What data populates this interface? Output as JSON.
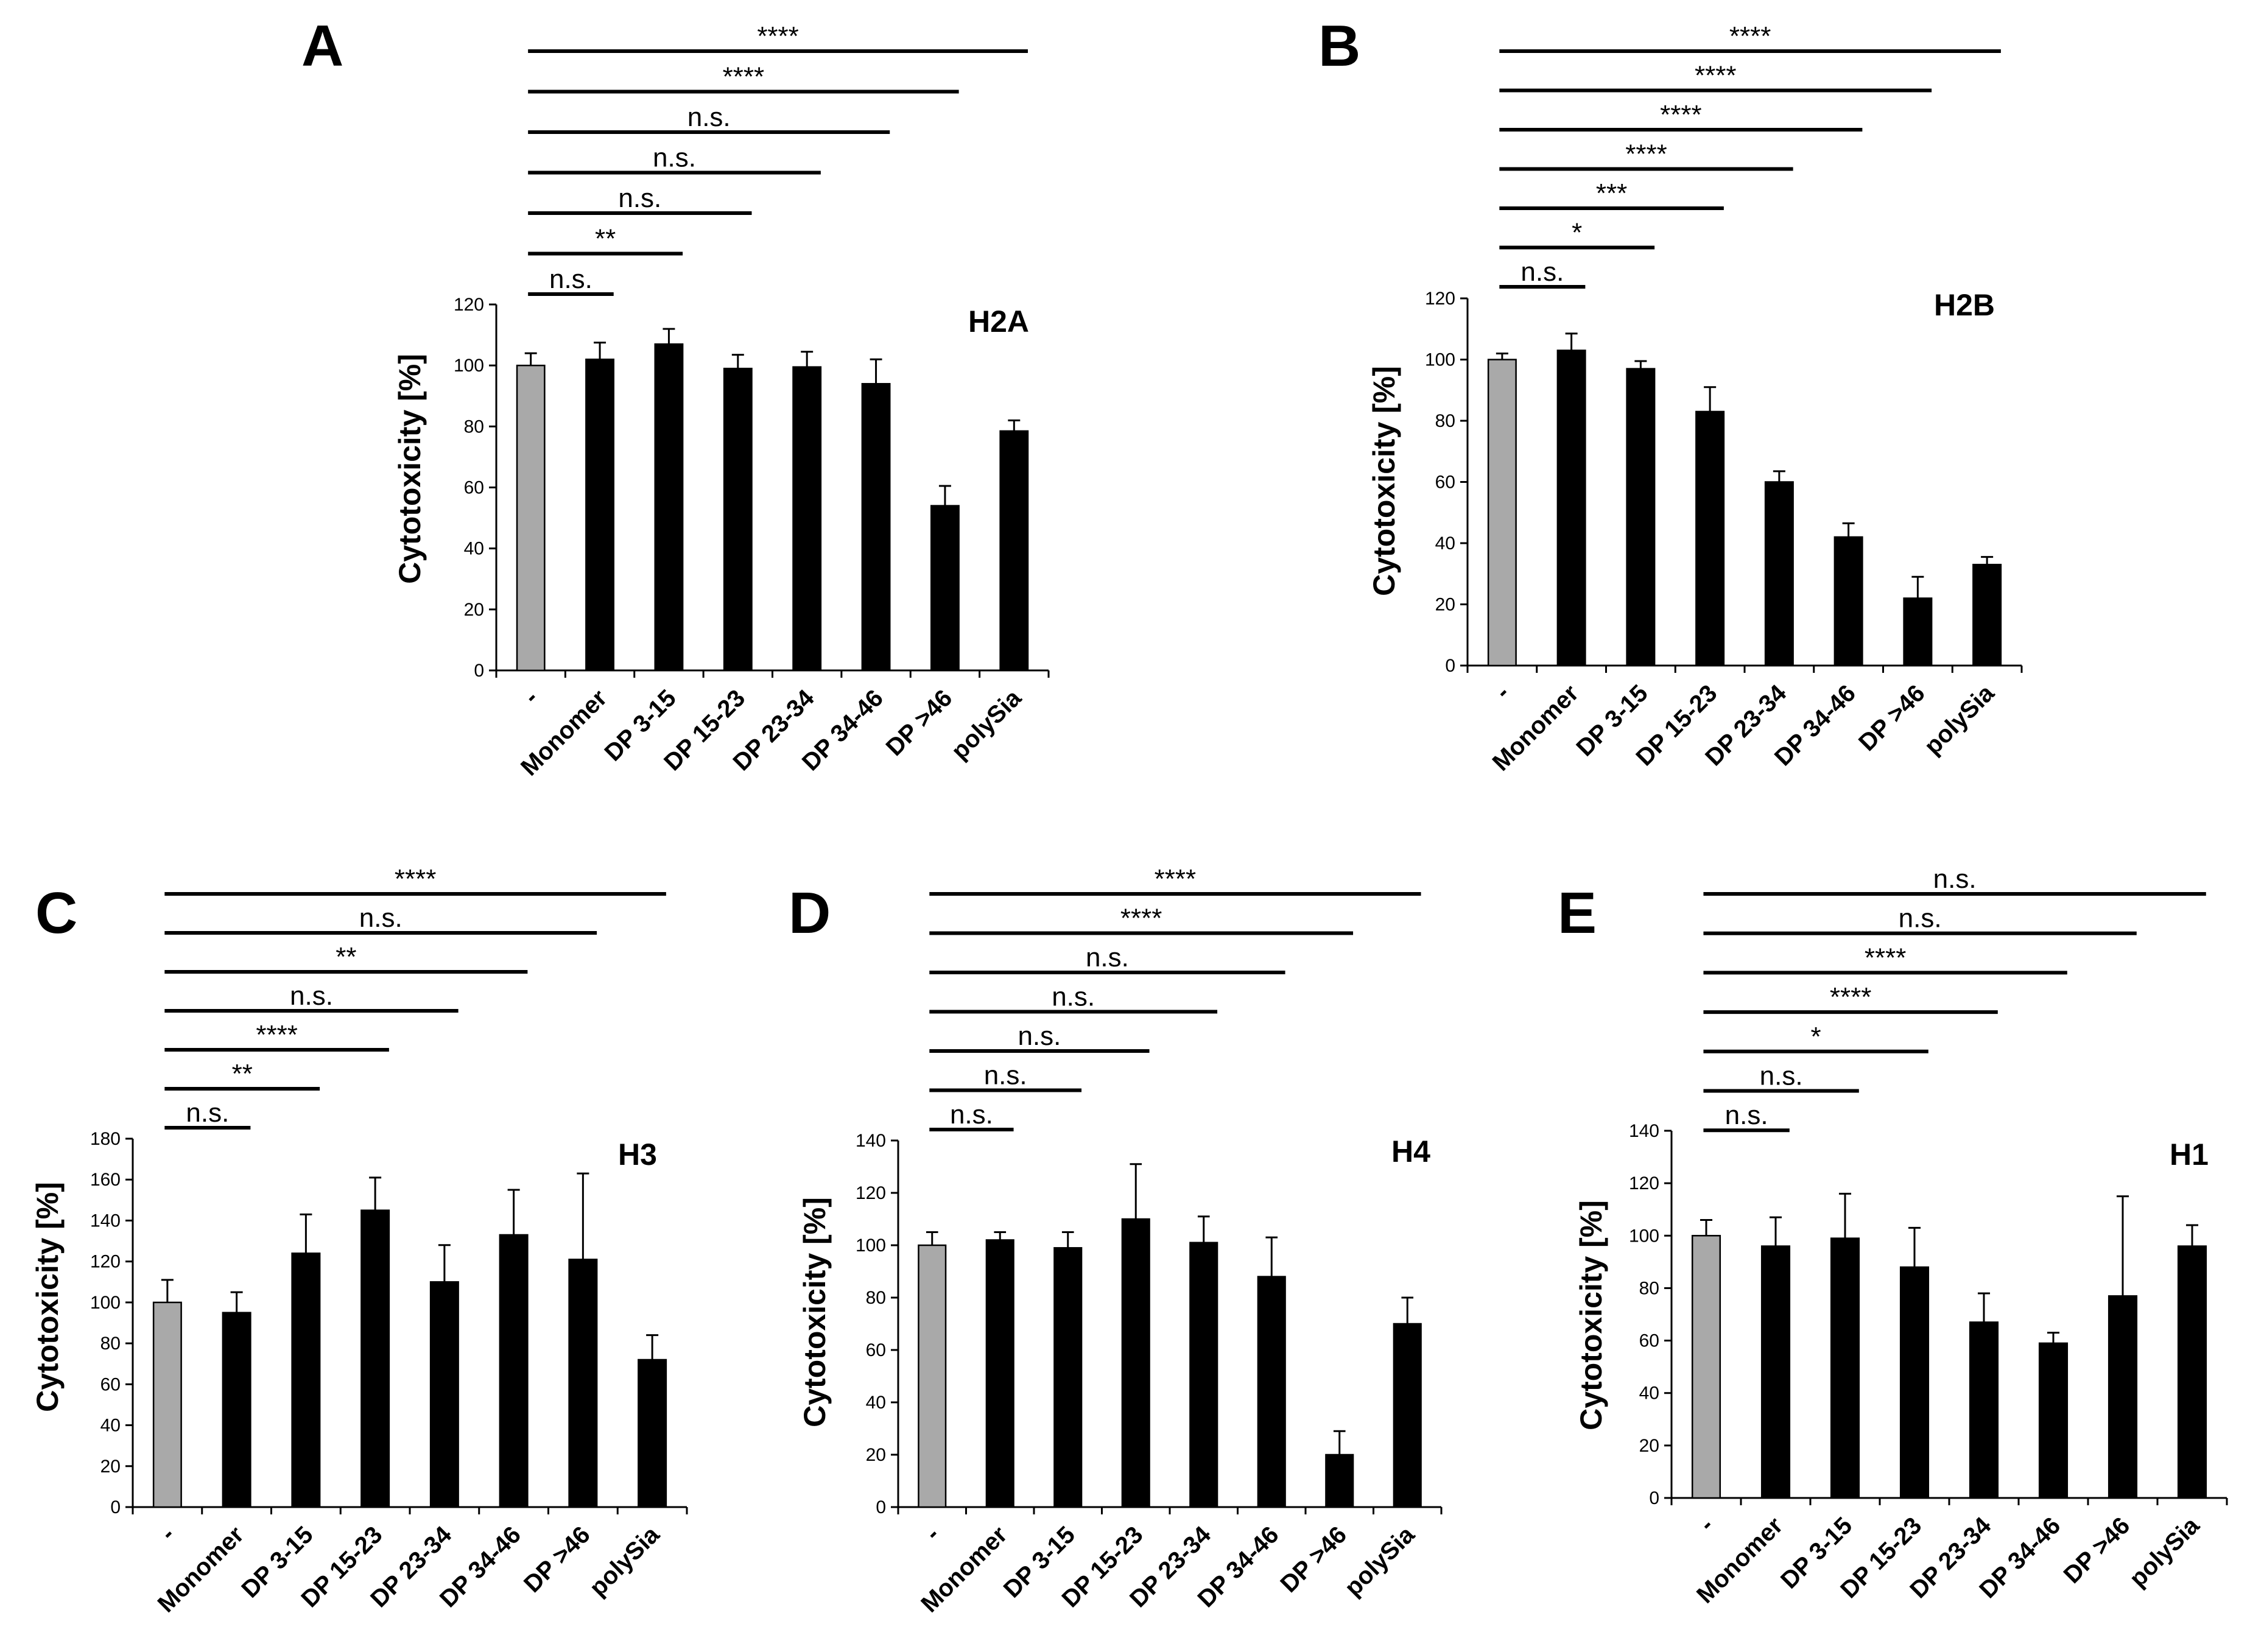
{
  "chart_data": [
    {
      "panel": "A",
      "type": "bar",
      "title": "H2A",
      "ylabel": "Cytotoxicity [%]",
      "xlabel": "",
      "ylim": [
        0,
        120
      ],
      "yticks": [
        "0",
        "20",
        "40",
        "60",
        "80",
        "100",
        "120"
      ],
      "categories": [
        "-",
        "Monomer",
        "DP 3-15",
        "DP 15-23",
        "DP 23-34",
        "DP 34-46",
        "DP >46",
        "polySia"
      ],
      "values": [
        100,
        102,
        107,
        99,
        99.5,
        94,
        54,
        78.5
      ],
      "errors": [
        4,
        5.5,
        5,
        4.5,
        5,
        8,
        6.5,
        3.5
      ],
      "bar_colors": [
        "#a9a9a9",
        "#000000",
        "#000000",
        "#000000",
        "#000000",
        "#000000",
        "#000000",
        "#000000"
      ],
      "significance": [
        {
          "label": "n.s.",
          "from": 0,
          "to": 1
        },
        {
          "label": "**",
          "from": 0,
          "to": 2
        },
        {
          "label": "n.s.",
          "from": 0,
          "to": 3
        },
        {
          "label": "n.s.",
          "from": 0,
          "to": 4
        },
        {
          "label": "n.s.",
          "from": 0,
          "to": 5
        },
        {
          "label": "****",
          "from": 0,
          "to": 6
        },
        {
          "label": "****",
          "from": 0,
          "to": 7
        }
      ]
    },
    {
      "panel": "B",
      "type": "bar",
      "title": "H2B",
      "ylabel": "Cytotoxicity [%]",
      "xlabel": "",
      "ylim": [
        0,
        120
      ],
      "yticks": [
        "0",
        "20",
        "40",
        "60",
        "80",
        "100",
        "120"
      ],
      "categories": [
        "-",
        "Monomer",
        "DP 3-15",
        "DP 15-23",
        "DP 23-34",
        "DP 34-46",
        "DP >46",
        "polySia"
      ],
      "values": [
        100,
        103,
        97,
        83,
        60,
        42,
        22,
        33
      ],
      "errors": [
        2,
        5.5,
        2.5,
        8,
        3.5,
        4.5,
        7,
        2.5
      ],
      "bar_colors": [
        "#a9a9a9",
        "#000000",
        "#000000",
        "#000000",
        "#000000",
        "#000000",
        "#000000",
        "#000000"
      ],
      "significance": [
        {
          "label": "n.s.",
          "from": 0,
          "to": 1
        },
        {
          "label": "*",
          "from": 0,
          "to": 2
        },
        {
          "label": "***",
          "from": 0,
          "to": 3
        },
        {
          "label": "****",
          "from": 0,
          "to": 4
        },
        {
          "label": "****",
          "from": 0,
          "to": 5
        },
        {
          "label": "****",
          "from": 0,
          "to": 6
        },
        {
          "label": "****",
          "from": 0,
          "to": 7
        }
      ]
    },
    {
      "panel": "C",
      "type": "bar",
      "title": "H3",
      "ylabel": "Cytotoxicity [%]",
      "xlabel": "",
      "ylim": [
        0,
        180
      ],
      "yticks": [
        "0",
        "20",
        "40",
        "60",
        "80",
        "100",
        "120",
        "140",
        "160",
        "180"
      ],
      "categories": [
        "-",
        "Monomer",
        "DP 3-15",
        "DP 15-23",
        "DP 23-34",
        "DP 34-46",
        "DP >46",
        "polySia"
      ],
      "values": [
        100,
        95,
        124,
        145,
        110,
        133,
        121,
        72
      ],
      "errors": [
        11,
        10,
        19,
        16,
        18,
        22,
        42,
        12
      ],
      "bar_colors": [
        "#a9a9a9",
        "#000000",
        "#000000",
        "#000000",
        "#000000",
        "#000000",
        "#000000",
        "#000000"
      ],
      "significance": [
        {
          "label": "n.s.",
          "from": 0,
          "to": 1
        },
        {
          "label": "**",
          "from": 0,
          "to": 2
        },
        {
          "label": "****",
          "from": 0,
          "to": 3
        },
        {
          "label": "n.s.",
          "from": 0,
          "to": 4
        },
        {
          "label": "**",
          "from": 0,
          "to": 5
        },
        {
          "label": "n.s.",
          "from": 0,
          "to": 6
        },
        {
          "label": "****",
          "from": 0,
          "to": 7
        }
      ]
    },
    {
      "panel": "D",
      "type": "bar",
      "title": "H4",
      "ylabel": "Cytotoxicity [%]",
      "xlabel": "",
      "ylim": [
        0,
        140
      ],
      "yticks": [
        "0",
        "20",
        "40",
        "60",
        "80",
        "100",
        "120",
        "140"
      ],
      "categories": [
        "-",
        "Monomer",
        "DP 3-15",
        "DP 15-23",
        "DP 23-34",
        "DP 34-46",
        "DP >46",
        "polySia"
      ],
      "values": [
        100,
        102,
        99,
        110,
        101,
        88,
        20,
        70
      ],
      "errors": [
        5,
        3,
        6,
        21,
        10,
        15,
        9,
        10
      ],
      "bar_colors": [
        "#a9a9a9",
        "#000000",
        "#000000",
        "#000000",
        "#000000",
        "#000000",
        "#000000",
        "#000000"
      ],
      "significance": [
        {
          "label": "n.s.",
          "from": 0,
          "to": 1
        },
        {
          "label": "n.s.",
          "from": 0,
          "to": 2
        },
        {
          "label": "n.s.",
          "from": 0,
          "to": 3
        },
        {
          "label": "n.s.",
          "from": 0,
          "to": 4
        },
        {
          "label": "n.s.",
          "from": 0,
          "to": 5
        },
        {
          "label": "****",
          "from": 0,
          "to": 6
        },
        {
          "label": "****",
          "from": 0,
          "to": 7
        }
      ]
    },
    {
      "panel": "E",
      "type": "bar",
      "title": "H1",
      "ylabel": "Cytotoxicity [%]",
      "xlabel": "",
      "ylim": [
        0,
        140
      ],
      "yticks": [
        "0",
        "20",
        "40",
        "60",
        "80",
        "100",
        "120",
        "140"
      ],
      "categories": [
        "-",
        "Monomer",
        "DP 3-15",
        "DP 15-23",
        "DP 23-34",
        "DP 34-46",
        "DP >46",
        "polySia"
      ],
      "values": [
        100,
        96,
        99,
        88,
        67,
        59,
        77,
        96
      ],
      "errors": [
        6,
        11,
        17,
        15,
        11,
        4,
        38,
        8
      ],
      "bar_colors": [
        "#a9a9a9",
        "#000000",
        "#000000",
        "#000000",
        "#000000",
        "#000000",
        "#000000",
        "#000000"
      ],
      "significance": [
        {
          "label": "n.s.",
          "from": 0,
          "to": 1
        },
        {
          "label": "n.s.",
          "from": 0,
          "to": 2
        },
        {
          "label": "*",
          "from": 0,
          "to": 3
        },
        {
          "label": "****",
          "from": 0,
          "to": 4
        },
        {
          "label": "****",
          "from": 0,
          "to": 5
        },
        {
          "label": "n.s.",
          "from": 0,
          "to": 6
        },
        {
          "label": "n.s.",
          "from": 0,
          "to": 7
        }
      ]
    }
  ]
}
